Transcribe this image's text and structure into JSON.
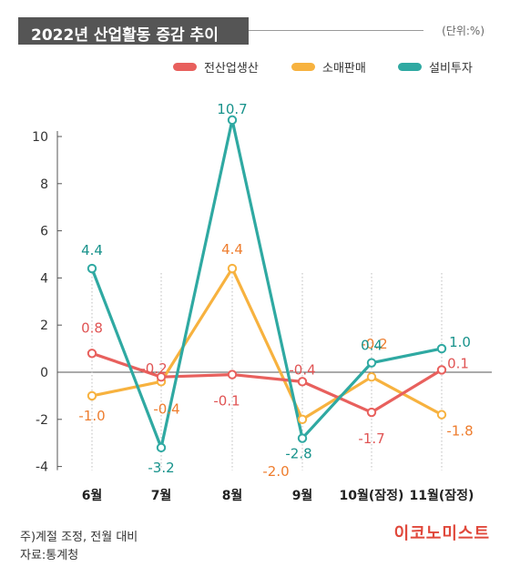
{
  "header": {
    "title": "2022년 산업활동 증감 추이",
    "unit": "(단위:%)"
  },
  "chart_data": {
    "type": "line",
    "title": "2022년 산업활동 증감 추이",
    "ylabel": "",
    "xlabel": "",
    "unit": "(단위:%)",
    "categories": [
      "6월",
      "7월",
      "8월",
      "9월",
      "10월(잠정)",
      "11월(잠정)"
    ],
    "ylim": [
      -4,
      10
    ],
    "yticks": [
      -4,
      -2,
      0,
      2,
      4,
      6,
      8,
      10
    ],
    "ytick_labels": [
      "-4",
      "-2",
      "0",
      "2",
      "4",
      "6",
      "8",
      "10"
    ],
    "grid": false,
    "legend_position": "top-right",
    "series": [
      {
        "name": "전산업생산",
        "color": "#e8605d",
        "label_color": "#e05454",
        "values": [
          0.8,
          -0.2,
          -0.1,
          -0.4,
          -1.7,
          0.1
        ],
        "labels": [
          "0.8",
          "-0.2",
          "-0.1",
          "-0.4",
          "-1.7",
          "0.1"
        ]
      },
      {
        "name": "소매판매",
        "color": "#f7b23f",
        "label_color": "#ee7d2e",
        "values": [
          -1.0,
          -0.4,
          4.4,
          -2.0,
          -0.2,
          -1.8
        ],
        "labels": [
          "-1.0",
          "-0.4",
          "4.4",
          "-2.0",
          "-0.2",
          "-1.8"
        ]
      },
      {
        "name": "설비투자",
        "color": "#2fa9a2",
        "label_color": "#17928b",
        "values": [
          4.4,
          -3.2,
          10.7,
          -2.8,
          0.4,
          1.0
        ],
        "labels": [
          "4.4",
          "-3.2",
          "10.7",
          "-2.8",
          "0.4",
          "1.0"
        ]
      }
    ]
  },
  "footer": {
    "note": "주)계절 조정, 전월 대비",
    "source": "자료:통계청",
    "brand": "이코노미스트"
  }
}
